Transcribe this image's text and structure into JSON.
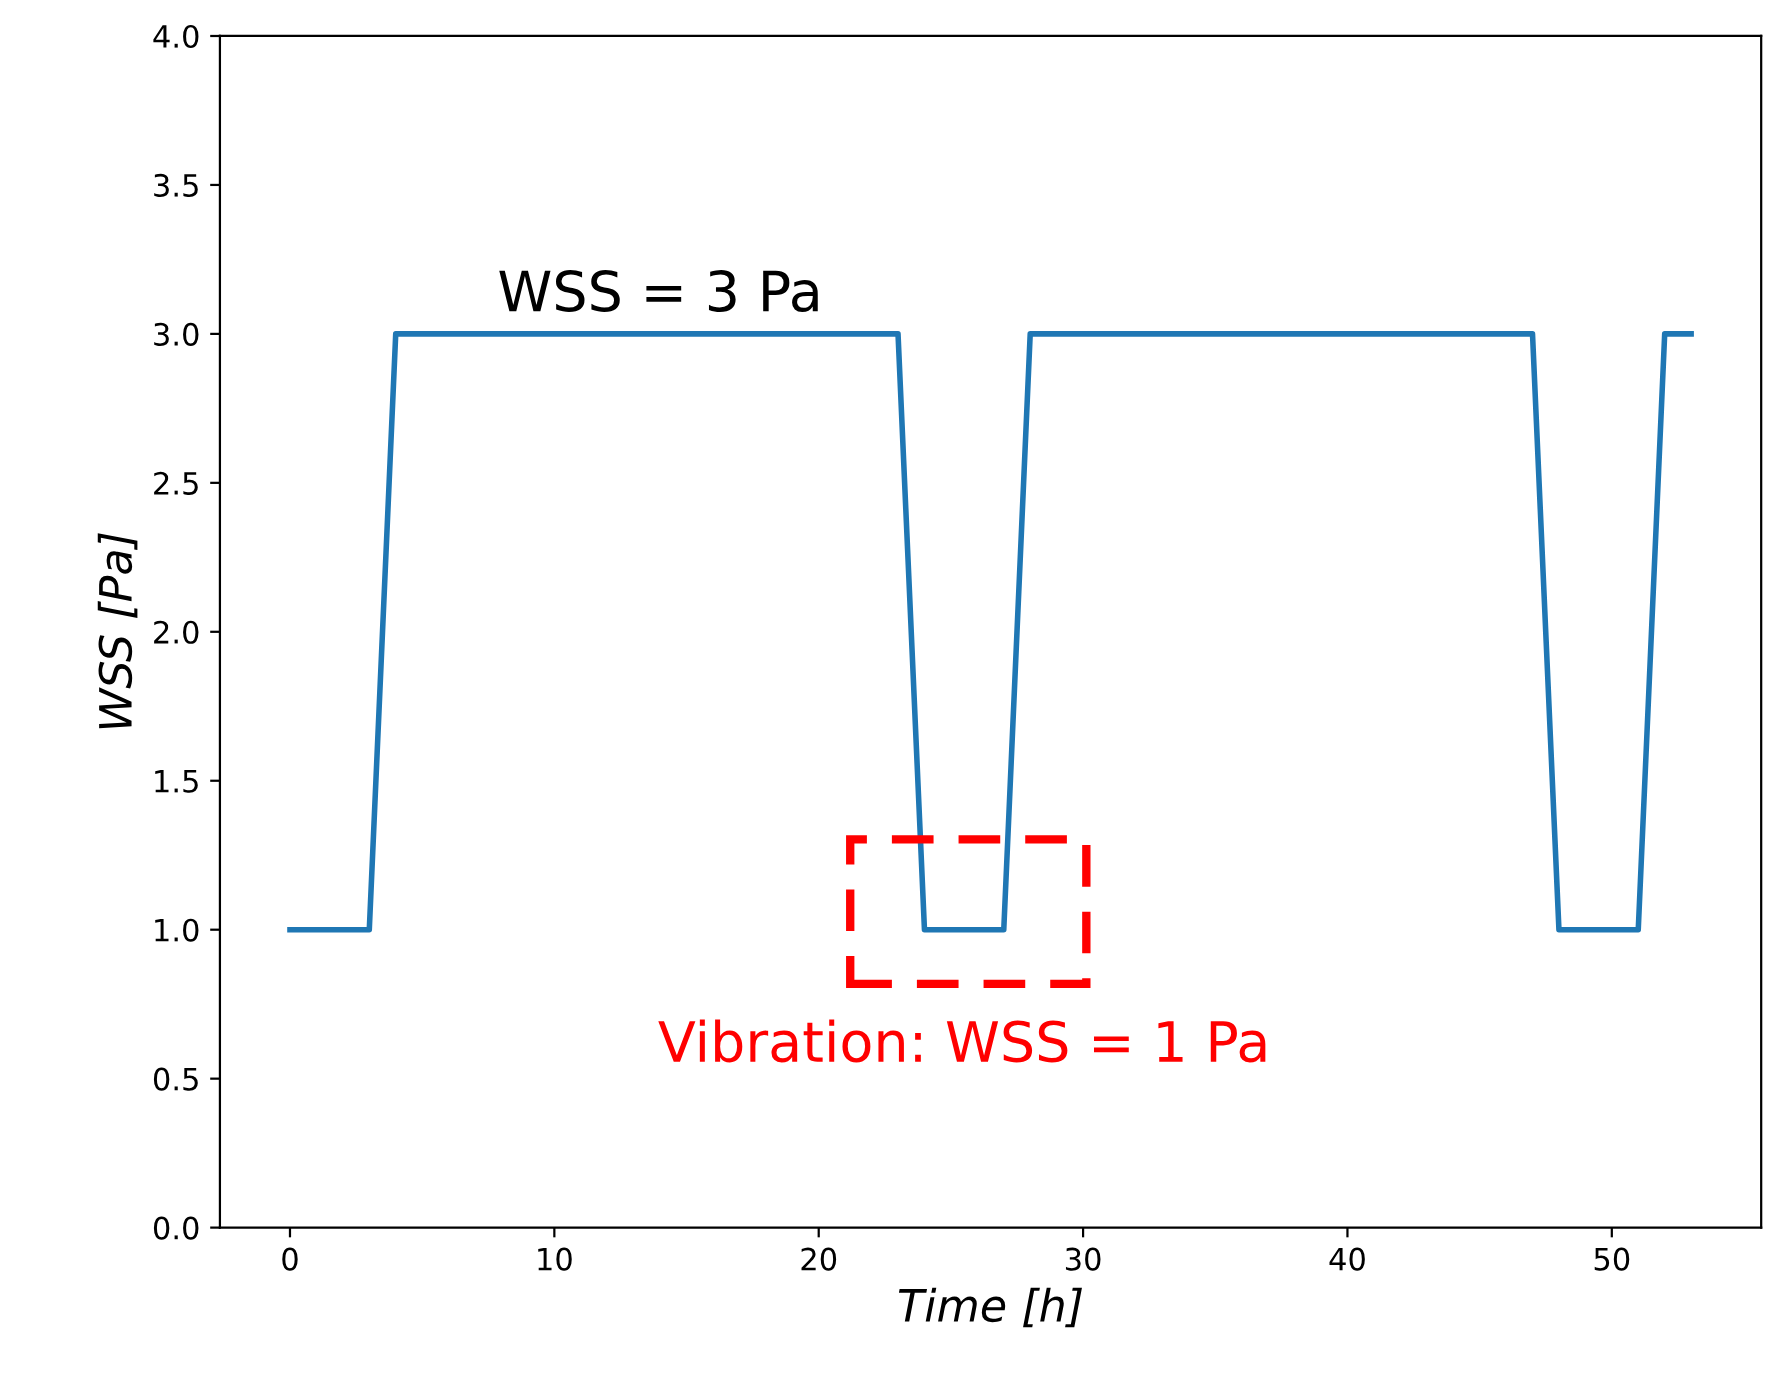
{
  "chart_data": {
    "type": "line",
    "xlabel": "Time [h]",
    "ylabel": "WSS [Pa]",
    "x": [
      0,
      3,
      4,
      23,
      24,
      27,
      28,
      47,
      48,
      51,
      52,
      53
    ],
    "series": [
      {
        "color": "#1f77b4",
        "values": [
          1.0,
          1.0,
          3.0,
          3.0,
          1.0,
          1.0,
          3.0,
          3.0,
          1.0,
          1.0,
          3.0,
          3.0
        ]
      }
    ],
    "xlim": [
      -2.65,
      55.65
    ],
    "xticks": [
      0,
      10,
      20,
      30,
      40,
      50
    ],
    "ylim": [
      0.0,
      4.0
    ],
    "yticks": [
      {
        "value": 0,
        "label": "0.0"
      },
      {
        "value": 0.5,
        "label": "0.5"
      },
      {
        "value": 1,
        "label": "1.0"
      },
      {
        "value": 1.5,
        "label": "1.5"
      },
      {
        "value": 2,
        "label": "2.0"
      },
      {
        "value": 2.5,
        "label": "2.5"
      },
      {
        "value": 3,
        "label": "3.0"
      },
      {
        "value": 3.5,
        "label": "3.5"
      },
      {
        "value": 4,
        "label": "4.0"
      }
    ],
    "grid": false,
    "marker": "none",
    "line_style": "solid",
    "annotations": [
      {
        "text": "WSS = 3 Pa",
        "x": 14,
        "y": 3.0
      },
      {
        "text": "Vibration: WSS = 1 Pa",
        "x": 25.5,
        "y": 1.0
      }
    ]
  }
}
